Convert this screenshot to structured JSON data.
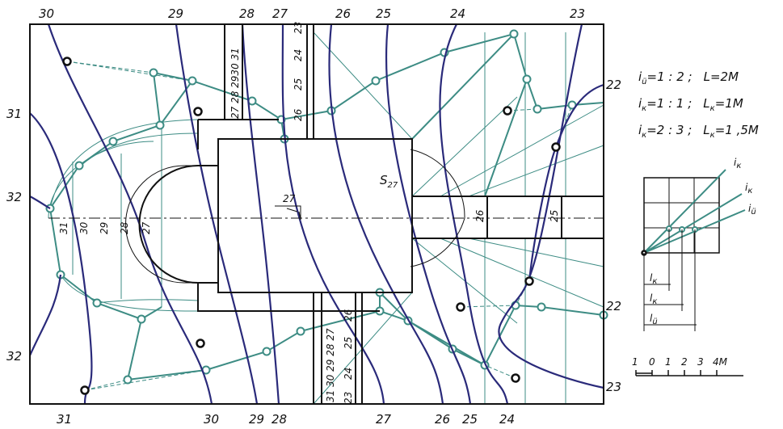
{
  "contours": {
    "top": [
      "30",
      "29",
      "28",
      "27",
      "26",
      "25",
      "24",
      "23"
    ],
    "bottom": [
      "31",
      "30",
      "29",
      "28",
      "27",
      "26",
      "25",
      "24"
    ],
    "left": [
      "31",
      "32",
      "32"
    ],
    "right": [
      "22",
      "22",
      "23"
    ]
  },
  "slopes": [
    {
      "sym": "i",
      "sub": "ü",
      "text": "=1 : 2 ;",
      "len_sym": "L",
      "len_text": "=2M"
    },
    {
      "sym": "i",
      "sub": "к",
      "text": "=1 : 1 ;",
      "len_sym": "L",
      "len_sub": "к",
      "len_text": "=1M"
    },
    {
      "sym": "i",
      "sub": "к",
      "text": "=2 : 3 ;",
      "len_sym": "L",
      "len_sub": "к",
      "len_text": "=1 ,5M"
    }
  ],
  "slope_diagram": {
    "lines": [
      {
        "sym": "i",
        "sub": "к"
      },
      {
        "sym": "i",
        "sub": "к"
      },
      {
        "sym": "i",
        "sub": "ü"
      }
    ],
    "lengths": [
      {
        "sym": "l",
        "sub": "к"
      },
      {
        "sym": "l",
        "sub": "к"
      },
      {
        "sym": "l",
        "sub": "ü"
      }
    ]
  },
  "scale": [
    "1",
    "0",
    "1",
    "2",
    "3",
    "4M"
  ],
  "plan_labels": {
    "mark": "27",
    "slope_sym": "S",
    "slope_sub": "27",
    "road": [
      "26",
      "25"
    ],
    "arc": [
      "31",
      "30",
      "29",
      "28",
      "27"
    ],
    "top_left_strip": "27 28 2930 31",
    "top_right_strip": [
      "23",
      "24",
      "25",
      "26"
    ],
    "bottom_left_strip": "31 30 29 28 27",
    "bottom_right_strip": [
      "23",
      "24",
      "25",
      "26"
    ]
  }
}
